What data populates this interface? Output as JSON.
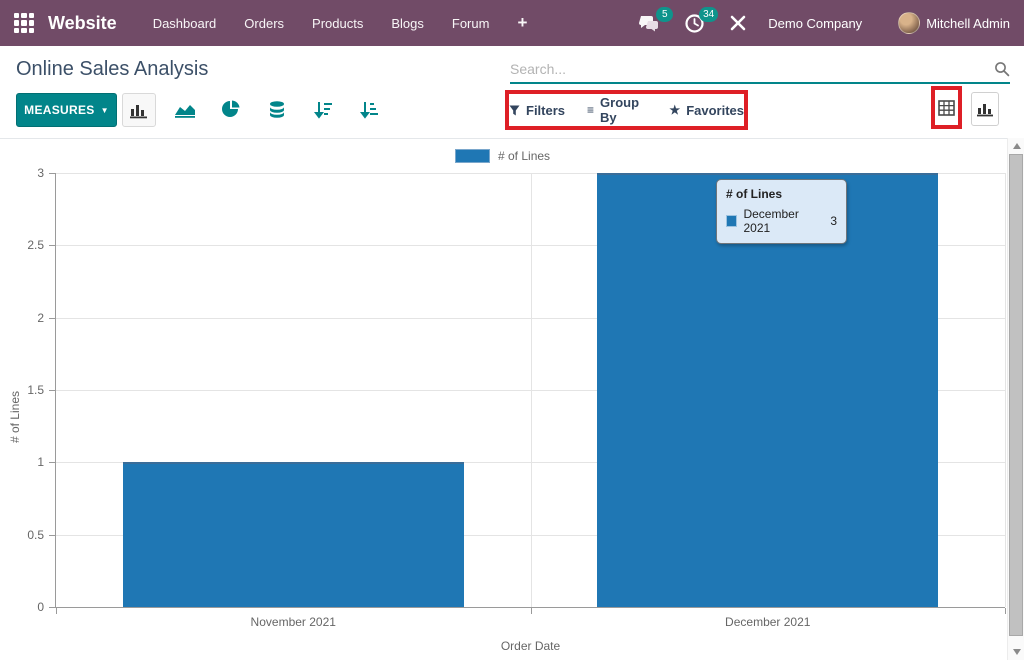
{
  "navbar": {
    "app_name": "Website",
    "menu_items": [
      "Dashboard",
      "Orders",
      "Products",
      "Blogs",
      "Forum"
    ],
    "plus_label": "+",
    "messages_badge": "5",
    "activities_badge": "34",
    "company": "Demo Company",
    "user": "Mitchell Admin"
  },
  "control_panel": {
    "title": "Online Sales Analysis",
    "search_placeholder": "Search...",
    "measures_label": "MEASURES",
    "caret_glyph": "▼",
    "filters_label": "Filters",
    "group_by_label": "Group By",
    "favorites_label": "Favorites",
    "group_by_glyph": "≡",
    "favorites_glyph": "★"
  },
  "tooltip": {
    "title": "# of Lines",
    "label": "December 2021",
    "value": "3"
  },
  "chart_data": {
    "type": "bar",
    "title": "",
    "categories": [
      "November 2021",
      "December 2021"
    ],
    "series": [
      {
        "name": "# of Lines",
        "values": [
          1,
          3
        ],
        "color": "#1f77b4"
      }
    ],
    "xlabel": "Order Date",
    "ylabel": "# of Lines",
    "ylim": [
      0,
      3
    ],
    "yticks": [
      0,
      0.5,
      1,
      1.5,
      2,
      2.5,
      3
    ],
    "legend_position": "top-center",
    "grid": true,
    "bar_width_fraction": 0.718
  },
  "colors": {
    "navbar_bg": "#714B67",
    "accent_teal": "#02858a",
    "badge_teal": "#0f948c",
    "bar_blue": "#1f77b4",
    "annotation_red": "#de1f26",
    "title_text": "#3c5068"
  }
}
